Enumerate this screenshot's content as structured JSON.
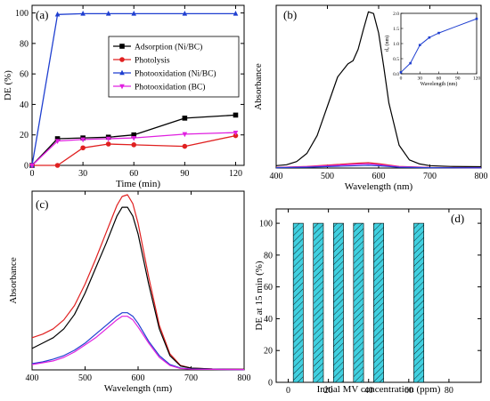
{
  "chart_data": [
    {
      "panel": "(a)",
      "type": "line",
      "xlabel": "Time (min)",
      "ylabel": "DE (%)",
      "xlim": [
        0,
        125
      ],
      "ylim": [
        0,
        105
      ],
      "xticks": [
        0,
        30,
        60,
        90,
        120
      ],
      "yticks": [
        0,
        20,
        40,
        60,
        80,
        100
      ],
      "legend_position": "right",
      "x": [
        0,
        15,
        30,
        45,
        60,
        90,
        120
      ],
      "series": [
        {
          "name": "Adsorption (Ni/BC)",
          "color": "#000000",
          "marker": "square",
          "values": [
            0,
            17.5,
            18,
            18.5,
            20,
            31,
            33
          ]
        },
        {
          "name": "Photolysis",
          "color": "#e02020",
          "marker": "circle",
          "values": [
            0,
            0,
            11.5,
            14,
            13.5,
            12.5,
            19.5
          ]
        },
        {
          "name": "Photooxidation (Ni/BC)",
          "color": "#1f3fd0",
          "marker": "triangle-up",
          "values": [
            0,
            99,
            99.5,
            99.5,
            99.5,
            99.5,
            99.5
          ]
        },
        {
          "name": "Photooxidation (BC)",
          "color": "#e020e0",
          "marker": "triangle-down",
          "values": [
            0,
            16,
            17,
            17.5,
            18,
            20.5,
            21.5
          ]
        }
      ]
    },
    {
      "panel": "(b)",
      "type": "line",
      "xlabel": "Wavelength (nm)",
      "ylabel": "Absorbance",
      "xlim": [
        400,
        800
      ],
      "ylim": [
        0,
        1.0
      ],
      "xticks": [
        400,
        500,
        600,
        700,
        800
      ],
      "series": [
        {
          "color": "#000000",
          "x": [
            400,
            420,
            440,
            460,
            480,
            500,
            520,
            540,
            550,
            560,
            570,
            580,
            590,
            600,
            610,
            620,
            640,
            660,
            680,
            700,
            740,
            800
          ],
          "values": [
            0.015,
            0.02,
            0.04,
            0.09,
            0.2,
            0.38,
            0.56,
            0.64,
            0.66,
            0.73,
            0.85,
            0.96,
            0.95,
            0.83,
            0.62,
            0.4,
            0.14,
            0.05,
            0.025,
            0.015,
            0.01,
            0.008
          ]
        },
        {
          "color": "#e02020",
          "x": [
            400,
            460,
            520,
            560,
            580,
            600,
            640,
            700,
            800
          ],
          "values": [
            0.004,
            0.01,
            0.022,
            0.03,
            0.033,
            0.027,
            0.01,
            0.004,
            0.002
          ]
        },
        {
          "color": "#e020e0",
          "x": [
            400,
            460,
            520,
            560,
            580,
            600,
            640,
            700,
            800
          ],
          "values": [
            0.003,
            0.008,
            0.017,
            0.024,
            0.026,
            0.021,
            0.008,
            0.003,
            0.002
          ]
        },
        {
          "color": "#1f3fd0",
          "x": [
            400,
            460,
            520,
            560,
            580,
            600,
            640,
            700,
            800
          ],
          "values": [
            0.002,
            0.005,
            0.011,
            0.015,
            0.017,
            0.014,
            0.005,
            0.002,
            0.001
          ]
        }
      ],
      "inset": {
        "xlabel": "Wavelength (nm)",
        "ylabel": "d₀ (nm)",
        "xlim": [
          0,
          120
        ],
        "ylim": [
          0,
          2.0
        ],
        "xticks": [
          0,
          30,
          60,
          90,
          120
        ],
        "yticks": [
          0.0,
          0.5,
          1.0,
          1.5,
          2.0
        ],
        "ytick_labels": [
          "0.0",
          "0.5",
          "1.0",
          "1.5",
          "2.0"
        ],
        "color": "#1f3fd0",
        "x": [
          0,
          15,
          30,
          45,
          60,
          120
        ],
        "values": [
          0.05,
          0.35,
          0.95,
          1.2,
          1.35,
          1.82
        ]
      }
    },
    {
      "panel": "(c)",
      "type": "line",
      "xlabel": "Wavelength (nm)",
      "ylabel": "Absorbance",
      "xlim": [
        400,
        800
      ],
      "ylim": [
        0,
        1.0
      ],
      "xticks": [
        400,
        500,
        600,
        700,
        800
      ],
      "series": [
        {
          "color": "#e02020",
          "x": [
            400,
            420,
            440,
            460,
            480,
            500,
            520,
            540,
            560,
            570,
            580,
            590,
            600,
            620,
            640,
            660,
            680,
            700,
            740,
            800
          ],
          "values": [
            0.18,
            0.2,
            0.23,
            0.28,
            0.36,
            0.48,
            0.62,
            0.77,
            0.92,
            0.97,
            0.98,
            0.93,
            0.82,
            0.52,
            0.25,
            0.09,
            0.025,
            0.01,
            0.005,
            0.003
          ]
        },
        {
          "color": "#000000",
          "x": [
            400,
            420,
            440,
            460,
            480,
            500,
            520,
            540,
            560,
            570,
            580,
            590,
            600,
            620,
            640,
            660,
            680,
            700,
            740,
            800
          ],
          "values": [
            0.12,
            0.15,
            0.18,
            0.23,
            0.31,
            0.43,
            0.57,
            0.71,
            0.86,
            0.91,
            0.91,
            0.86,
            0.76,
            0.48,
            0.23,
            0.08,
            0.022,
            0.01,
            0.005,
            0.003
          ]
        },
        {
          "color": "#1f3fd0",
          "x": [
            400,
            420,
            440,
            460,
            480,
            500,
            520,
            540,
            560,
            570,
            580,
            590,
            600,
            620,
            640,
            660,
            680,
            700,
            740,
            800
          ],
          "values": [
            0.035,
            0.045,
            0.06,
            0.08,
            0.11,
            0.15,
            0.2,
            0.25,
            0.3,
            0.32,
            0.32,
            0.3,
            0.26,
            0.16,
            0.08,
            0.03,
            0.01,
            0.005,
            0.003,
            0.002
          ]
        },
        {
          "color": "#e020e0",
          "x": [
            400,
            420,
            440,
            460,
            480,
            500,
            520,
            540,
            560,
            570,
            580,
            590,
            600,
            620,
            640,
            660,
            680,
            700,
            740,
            800
          ],
          "values": [
            0.03,
            0.04,
            0.05,
            0.07,
            0.1,
            0.14,
            0.18,
            0.23,
            0.28,
            0.3,
            0.3,
            0.28,
            0.24,
            0.15,
            0.07,
            0.025,
            0.008,
            0.004,
            0.003,
            0.002
          ]
        }
      ]
    },
    {
      "panel": "(d)",
      "type": "bar",
      "xlabel": "Initial MV concentration (ppm)",
      "ylabel": "DE at 15 min (%)",
      "xlim": [
        -6,
        96
      ],
      "ylim": [
        0,
        109
      ],
      "xticks": [
        0,
        20,
        40,
        60,
        80
      ],
      "yticks": [
        0,
        20,
        40,
        60,
        80,
        100
      ],
      "bar_width": 5,
      "color": "#40d0e0",
      "hatch": "diagonal",
      "x": [
        5,
        15,
        25,
        35,
        45,
        65
      ],
      "values": [
        100,
        100,
        100,
        100,
        100,
        100
      ]
    }
  ]
}
